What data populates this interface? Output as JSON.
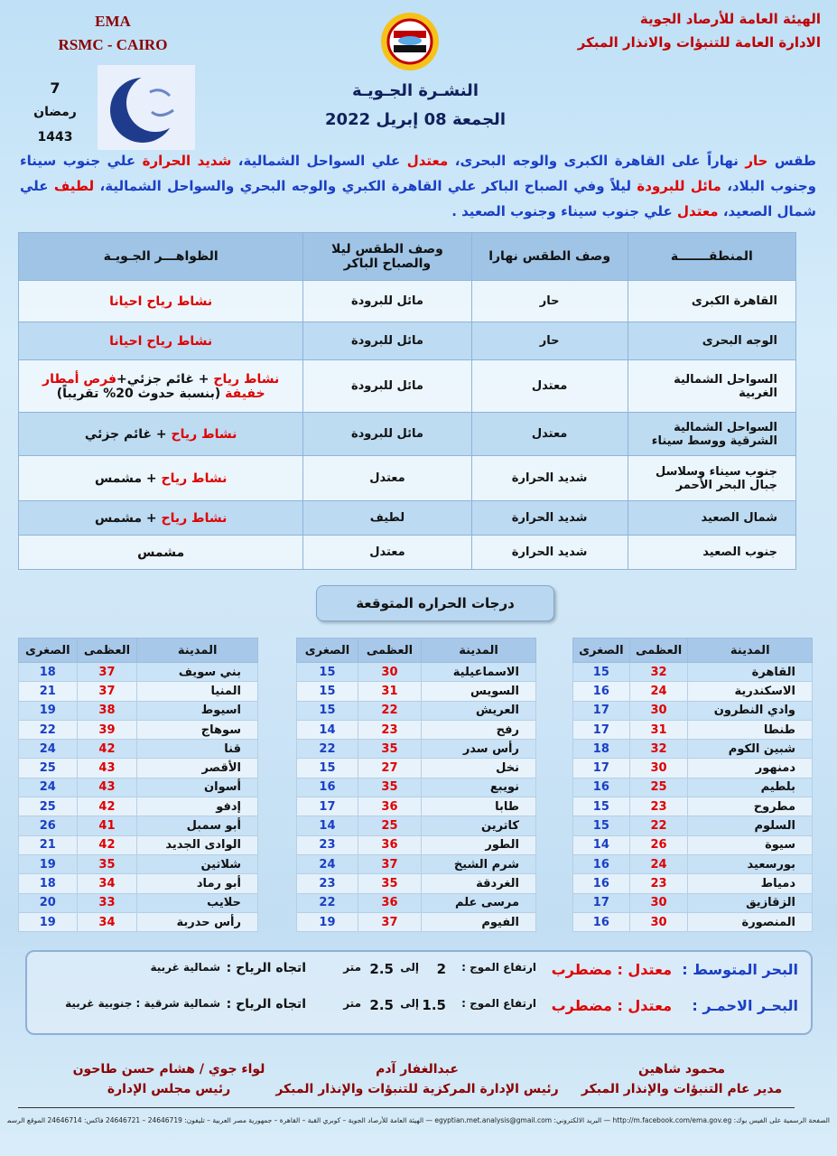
{
  "header": {
    "org_line1": "الهيئة العامة للأرصاد الجوية",
    "org_line2": "الادارة العامة للتنبؤات والانذار المبكر",
    "ema": "EMA",
    "rsmc": "RSMC - CAIRO",
    "ramadan_day": 7,
    "ramadan_month": "رمضان",
    "hijri_year": 1443,
    "title": "النشـرة الجـويـة",
    "date": "الجمعة 08 إبريل 2022"
  },
  "summary": [
    {
      "text": "طقس ",
      "color": "#1a3fc4"
    },
    {
      "text": "حار",
      "color": "#e00000"
    },
    {
      "text": " نهاراً على القاهرة الكبرى والوجه البحرى، ",
      "color": "#1a3fc4"
    },
    {
      "text": "معتدل",
      "color": "#e00000"
    },
    {
      "text": " علي السواحل الشمالية، ",
      "color": "#1a3fc4"
    },
    {
      "text": "شديد الحرارة",
      "color": "#e00000"
    },
    {
      "text": " علي جنوب سيناء وجنوب البلاد، ",
      "color": "#1a3fc4"
    },
    {
      "text": "مائل للبرودة",
      "color": "#e00000"
    },
    {
      "text": " ليلاً وفي الصباح الباكر علي القاهرة الكبري والوجه البحري والسواحل الشمالية، ",
      "color": "#1a3fc4"
    },
    {
      "text": "لطيف",
      "color": "#e00000"
    },
    {
      "text": " علي شمال الصعيد، ",
      "color": "#1a3fc4"
    },
    {
      "text": "معتدل",
      "color": "#e00000"
    },
    {
      "text": " علي جنوب سيناء وجنوب الصعيد .",
      "color": "#1a3fc4"
    }
  ],
  "forecast": {
    "headers": [
      "المنطقـــــــة",
      "وصف الطقس نهارا",
      "وصف الطقس ليلا والصباح الباكر",
      "الظواهـــر الجـويـة"
    ],
    "rows": [
      {
        "region": "القاهرة الكبرى",
        "day": "حار",
        "night": "مائل للبرودة",
        "phenomena": [
          {
            "text": "نشاط رياح احيانا",
            "color": "#e00000"
          }
        ]
      },
      {
        "region": "الوجه البحرى",
        "day": "حار",
        "night": "مائل للبرودة",
        "phenomena": [
          {
            "text": "نشاط رياح احيانا",
            "color": "#e00000"
          }
        ]
      },
      {
        "region": "السواحل الشمالية الغربية",
        "day": "معتدل",
        "night": "مائل للبرودة",
        "phenomena": [
          {
            "text": "نشاط رياح",
            "color": "#e00000"
          },
          {
            "text": " + غائم جزئي+",
            "color": "#111111"
          },
          {
            "text": "فرص أمطار خفيفة",
            "color": "#e00000"
          },
          {
            "text": " (بنسبة حدوث 20% تقريباً)",
            "color": "#111111"
          }
        ]
      },
      {
        "region": "السواحل الشمالية الشرقية ووسط سيناء",
        "day": "معتدل",
        "night": "مائل للبرودة",
        "phenomena": [
          {
            "text": "نشاط رياح",
            "color": "#e00000"
          },
          {
            "text": " + غائم جزئي",
            "color": "#111111"
          }
        ]
      },
      {
        "region": "جنوب سيناء وسلاسل جبال البحر الأحمر",
        "day": "شديد الحرارة",
        "night": "معتدل",
        "phenomena": [
          {
            "text": "نشاط رياح",
            "color": "#e00000"
          },
          {
            "text": " + مشمس",
            "color": "#111111"
          }
        ]
      },
      {
        "region": "شمال الصعيد",
        "day": "شديد الحرارة",
        "night": "لطيف",
        "phenomena": [
          {
            "text": "نشاط رياح",
            "color": "#e00000"
          },
          {
            "text": " + مشمس",
            "color": "#111111"
          }
        ]
      },
      {
        "region": "جنوب الصعيد",
        "day": "شديد الحرارة",
        "night": "معتدل",
        "phenomena": [
          {
            "text": "مشمس",
            "color": "#111111"
          }
        ]
      }
    ]
  },
  "temperatures": {
    "title": "درجات الحراره المتوقعة",
    "headers": [
      "المدينة",
      "العظمى",
      "الصغرى"
    ],
    "tables": [
      {
        "rows": [
          [
            "القاهرة",
            32,
            15
          ],
          [
            "الاسكندرية",
            24,
            16
          ],
          [
            "وادي النطرون",
            30,
            17
          ],
          [
            "طنطا",
            31,
            17
          ],
          [
            "شبين الكوم",
            32,
            18
          ],
          [
            "دمنهور",
            30,
            17
          ],
          [
            "بلطيم",
            25,
            16
          ],
          [
            "مطروح",
            23,
            15
          ],
          [
            "السلوم",
            22,
            15
          ],
          [
            "سيوة",
            26,
            14
          ],
          [
            "بورسعيد",
            24,
            16
          ],
          [
            "دمياط",
            23,
            16
          ],
          [
            "الزقازيق",
            30,
            17
          ],
          [
            "المنصورة",
            30,
            16
          ]
        ]
      },
      {
        "rows": [
          [
            "الاسماعيلية",
            30,
            15
          ],
          [
            "السويس",
            31,
            15
          ],
          [
            "العريش",
            22,
            15
          ],
          [
            "رفح",
            23,
            14
          ],
          [
            "رأس سدر",
            35,
            22
          ],
          [
            "نخل",
            27,
            15
          ],
          [
            "نويبع",
            35,
            16
          ],
          [
            "طابا",
            36,
            17
          ],
          [
            "كاترين",
            25,
            14
          ],
          [
            "الطور",
            36,
            23
          ],
          [
            "شرم الشيخ",
            37,
            24
          ],
          [
            "الغردقة",
            35,
            23
          ],
          [
            "مرسى علم",
            36,
            22
          ],
          [
            "الفيوم",
            37,
            19
          ]
        ]
      },
      {
        "rows": [
          [
            "بني سويف",
            37,
            18
          ],
          [
            "المنيا",
            37,
            21
          ],
          [
            "اسيوط",
            38,
            19
          ],
          [
            "سوهاج",
            39,
            22
          ],
          [
            "قنا",
            42,
            24
          ],
          [
            "الأقصر",
            43,
            25
          ],
          [
            "أسوان",
            43,
            24
          ],
          [
            "إدفو",
            42,
            25
          ],
          [
            "أبو سمبل",
            41,
            26
          ],
          [
            "الوادى الجديد",
            42,
            21
          ],
          [
            "شلاتين",
            35,
            19
          ],
          [
            "أبو رماد",
            34,
            18
          ],
          [
            "حلايب",
            33,
            20
          ],
          [
            "رأس حدربة",
            34,
            19
          ]
        ]
      }
    ]
  },
  "seas": [
    {
      "sea": "البحر المتوسط :",
      "state": "معتدل : مضطرب",
      "wave_label": "ارتفاع الموج :",
      "wave_from": 2,
      "to": "إلى",
      "wave_to": 2.5,
      "unit": "متر",
      "wind_label": "اتجاه الرياح :",
      "wind": "شمالية غربية"
    },
    {
      "sea": "البحـر الاحمـر :",
      "state": "معتدل : مضطرب",
      "wave_label": "ارتفاع الموج :",
      "wave_from": 1.5,
      "to": "إلى",
      "wave_to": 2.5,
      "unit": "متر",
      "wind_label": "اتجاه الرياح :",
      "wind": "شمالية شرقية : جنوبية غربية"
    }
  ],
  "signatures": [
    {
      "name": "محمود شاهين",
      "role": "مدير عام التنبؤات والإنذار المبكر"
    },
    {
      "name": "عبدالغفار آدم",
      "role": "رئيس الإدارة المركزية للتنبؤات والإنذار المبكر"
    },
    {
      "name": "لواء جوي / هشام حسن طاحون",
      "role": "رئيس مجلس الإدارة"
    }
  ],
  "footer": "الصفحة الرسمية على الفيس بوك: http://m.facebook.com/ema.gov.eg — البريد الالكتروني: egyptian.met.analysis@gmail.com — الهيئة العامة للأرصاد الجوية – كوبري القبة – القاهرة – جمهورية مصر العربية – تليفون: 24646719 – 24646721 فاكس: 24646714 الموقع الرسمي: www.ema.gov.eg"
}
